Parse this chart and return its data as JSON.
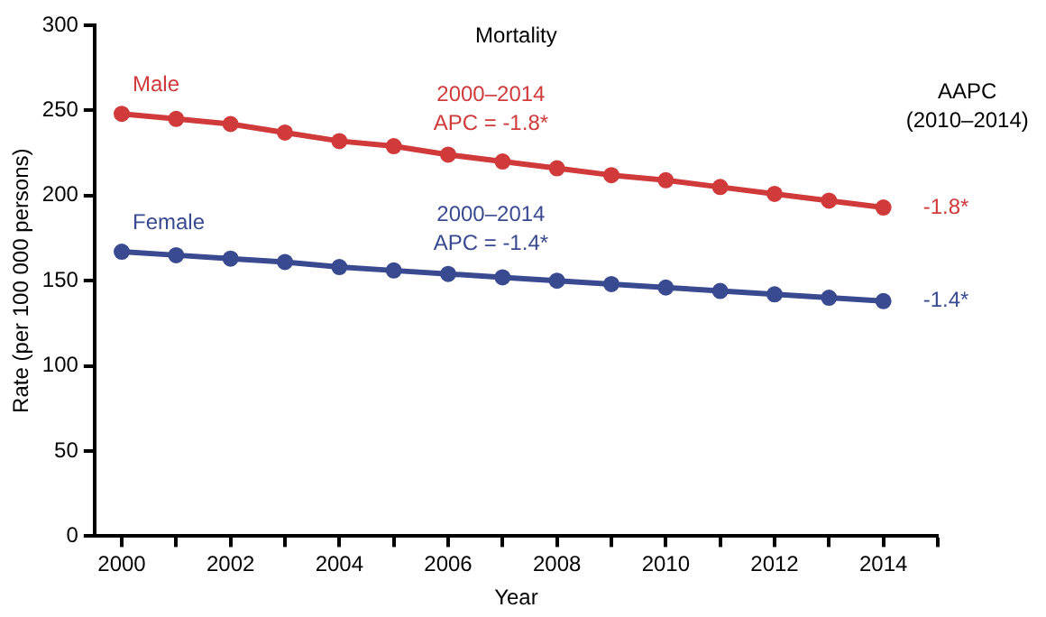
{
  "chart_data": {
    "type": "line",
    "title": "Mortality",
    "xlabel": "Year",
    "ylabel": "Rate (per 100 000 persons)",
    "x": [
      2000,
      2001,
      2002,
      2003,
      2004,
      2005,
      2006,
      2007,
      2008,
      2009,
      2010,
      2011,
      2012,
      2013,
      2014
    ],
    "series": [
      {
        "name": "Male",
        "color": "#d03a3a",
        "values": [
          248,
          245,
          242,
          237,
          232,
          229,
          224,
          220,
          216,
          212,
          209,
          205,
          201,
          197,
          193
        ]
      },
      {
        "name": "Female",
        "color": "#3a4a90",
        "values": [
          167,
          165,
          163,
          161,
          158,
          156,
          154,
          152,
          150,
          148,
          146,
          144,
          142,
          140,
          138
        ]
      }
    ],
    "xlim": [
      1999.5,
      2015
    ],
    "xticks": [
      2000,
      {
        "value": 2001,
        "label": null
      },
      2002,
      {
        "value": 2003,
        "label": null
      },
      2004,
      {
        "value": 2005,
        "label": null
      },
      2006,
      {
        "value": 2007,
        "label": null
      },
      2008,
      {
        "value": 2009,
        "label": null
      },
      2010,
      {
        "value": 2011,
        "label": null
      },
      2012,
      {
        "value": 2013,
        "label": null
      },
      2014,
      {
        "value": 2015,
        "label": null
      }
    ],
    "ylim": [
      0,
      300
    ],
    "yticks": [
      0,
      50,
      100,
      150,
      200,
      250,
      300
    ],
    "grid": false,
    "legend": false,
    "marker": "circle",
    "line_style": "solid",
    "annotations": [
      "2000–2014\nAPC = -1.8*",
      "2000–2014\nAPC = -1.4*",
      "AAPC\n(2010–2014)",
      {
        "text": "-1.8*",
        "x": 2014,
        "y": 193
      },
      {
        "text": "-1.4*",
        "x": 2014,
        "y": 138
      }
    ]
  }
}
